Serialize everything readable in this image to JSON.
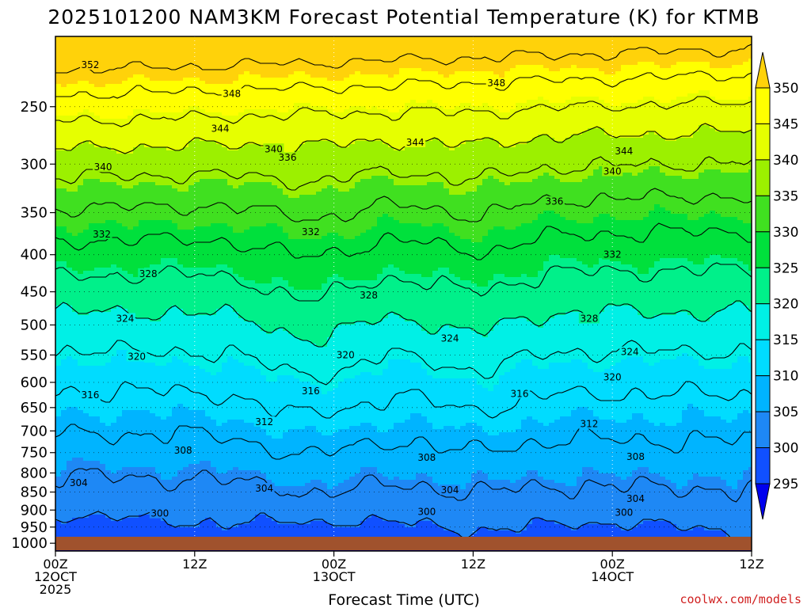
{
  "chart_data": {
    "type": "heatmap",
    "title": "2025101200 NAM3KM Forecast Potential Temperature (K) for KTMB",
    "xlabel": "Forecast Time (UTC)",
    "ylabel": "",
    "y_ticks": [
      250,
      300,
      350,
      400,
      450,
      500,
      550,
      600,
      650,
      700,
      750,
      800,
      850,
      900,
      950,
      1000
    ],
    "y_range": [
      200,
      1025
    ],
    "x_ticks": [
      {
        "hours": 0,
        "line1": "00Z",
        "line2": "12OCT",
        "line3": "2025"
      },
      {
        "hours": 12,
        "line1": "12Z",
        "line2": "",
        "line3": ""
      },
      {
        "hours": 24,
        "line1": "00Z",
        "line2": "13OCT",
        "line3": ""
      },
      {
        "hours": 36,
        "line1": "12Z",
        "line2": "",
        "line3": ""
      },
      {
        "hours": 48,
        "line1": "00Z",
        "line2": "14OCT",
        "line3": ""
      },
      {
        "hours": 60,
        "line1": "12Z",
        "line2": "",
        "line3": ""
      }
    ],
    "x_range_hours": [
      0,
      60
    ],
    "colorbar": {
      "levels": [
        295,
        300,
        305,
        310,
        315,
        320,
        325,
        330,
        335,
        340,
        345,
        350
      ],
      "colors": [
        "#0000ee",
        "#1050ff",
        "#1e88f5",
        "#00b4ff",
        "#00dcff",
        "#00f0e6",
        "#00f08a",
        "#00e03c",
        "#40e020",
        "#9cf000",
        "#e6ff00",
        "#ffff00",
        "#ffd20a"
      ]
    },
    "contour_values": [
      300,
      304,
      308,
      312,
      316,
      320,
      324,
      328,
      332,
      336,
      340,
      344,
      348,
      352
    ],
    "contour_labels": [
      {
        "value": "352",
        "hours": 3.0,
        "pres": 219
      },
      {
        "value": "348",
        "hours": 15.2,
        "pres": 240
      },
      {
        "value": "348",
        "hours": 38.0,
        "pres": 232
      },
      {
        "value": "344",
        "hours": 14.2,
        "pres": 268
      },
      {
        "value": "344",
        "hours": 31.0,
        "pres": 280
      },
      {
        "value": "344",
        "hours": 49.0,
        "pres": 288
      },
      {
        "value": "340",
        "hours": 18.8,
        "pres": 286
      },
      {
        "value": "340",
        "hours": 4.1,
        "pres": 303
      },
      {
        "value": "340",
        "hours": 48.0,
        "pres": 307
      },
      {
        "value": "336",
        "hours": 20.0,
        "pres": 294
      },
      {
        "value": "336",
        "hours": 43.0,
        "pres": 338
      },
      {
        "value": "332",
        "hours": 4.0,
        "pres": 375
      },
      {
        "value": "332",
        "hours": 22.0,
        "pres": 372
      },
      {
        "value": "332",
        "hours": 48.0,
        "pres": 400
      },
      {
        "value": "328",
        "hours": 8.0,
        "pres": 425
      },
      {
        "value": "328",
        "hours": 27.0,
        "pres": 455
      },
      {
        "value": "328",
        "hours": 46.0,
        "pres": 490
      },
      {
        "value": "324",
        "hours": 6.0,
        "pres": 490
      },
      {
        "value": "324",
        "hours": 34.0,
        "pres": 522
      },
      {
        "value": "324",
        "hours": 49.5,
        "pres": 545
      },
      {
        "value": "320",
        "hours": 7.0,
        "pres": 553
      },
      {
        "value": "320",
        "hours": 25.0,
        "pres": 550
      },
      {
        "value": "320",
        "hours": 48.0,
        "pres": 590
      },
      {
        "value": "316",
        "hours": 3.0,
        "pres": 625
      },
      {
        "value": "316",
        "hours": 22.0,
        "pres": 617
      },
      {
        "value": "316",
        "hours": 40.0,
        "pres": 622
      },
      {
        "value": "312",
        "hours": 18.0,
        "pres": 680
      },
      {
        "value": "312",
        "hours": 46.0,
        "pres": 685
      },
      {
        "value": "308",
        "hours": 11.0,
        "pres": 745
      },
      {
        "value": "308",
        "hours": 32.0,
        "pres": 762
      },
      {
        "value": "308",
        "hours": 50.0,
        "pres": 760
      },
      {
        "value": "304",
        "hours": 2.0,
        "pres": 826
      },
      {
        "value": "304",
        "hours": 18.0,
        "pres": 840
      },
      {
        "value": "304",
        "hours": 34.0,
        "pres": 845
      },
      {
        "value": "304",
        "hours": 50.0,
        "pres": 868
      },
      {
        "value": "300",
        "hours": 9.0,
        "pres": 910
      },
      {
        "value": "300",
        "hours": 32.0,
        "pres": 905
      },
      {
        "value": "300",
        "hours": 49.0,
        "pres": 907
      }
    ]
  },
  "credit": "coolwx.com/models"
}
